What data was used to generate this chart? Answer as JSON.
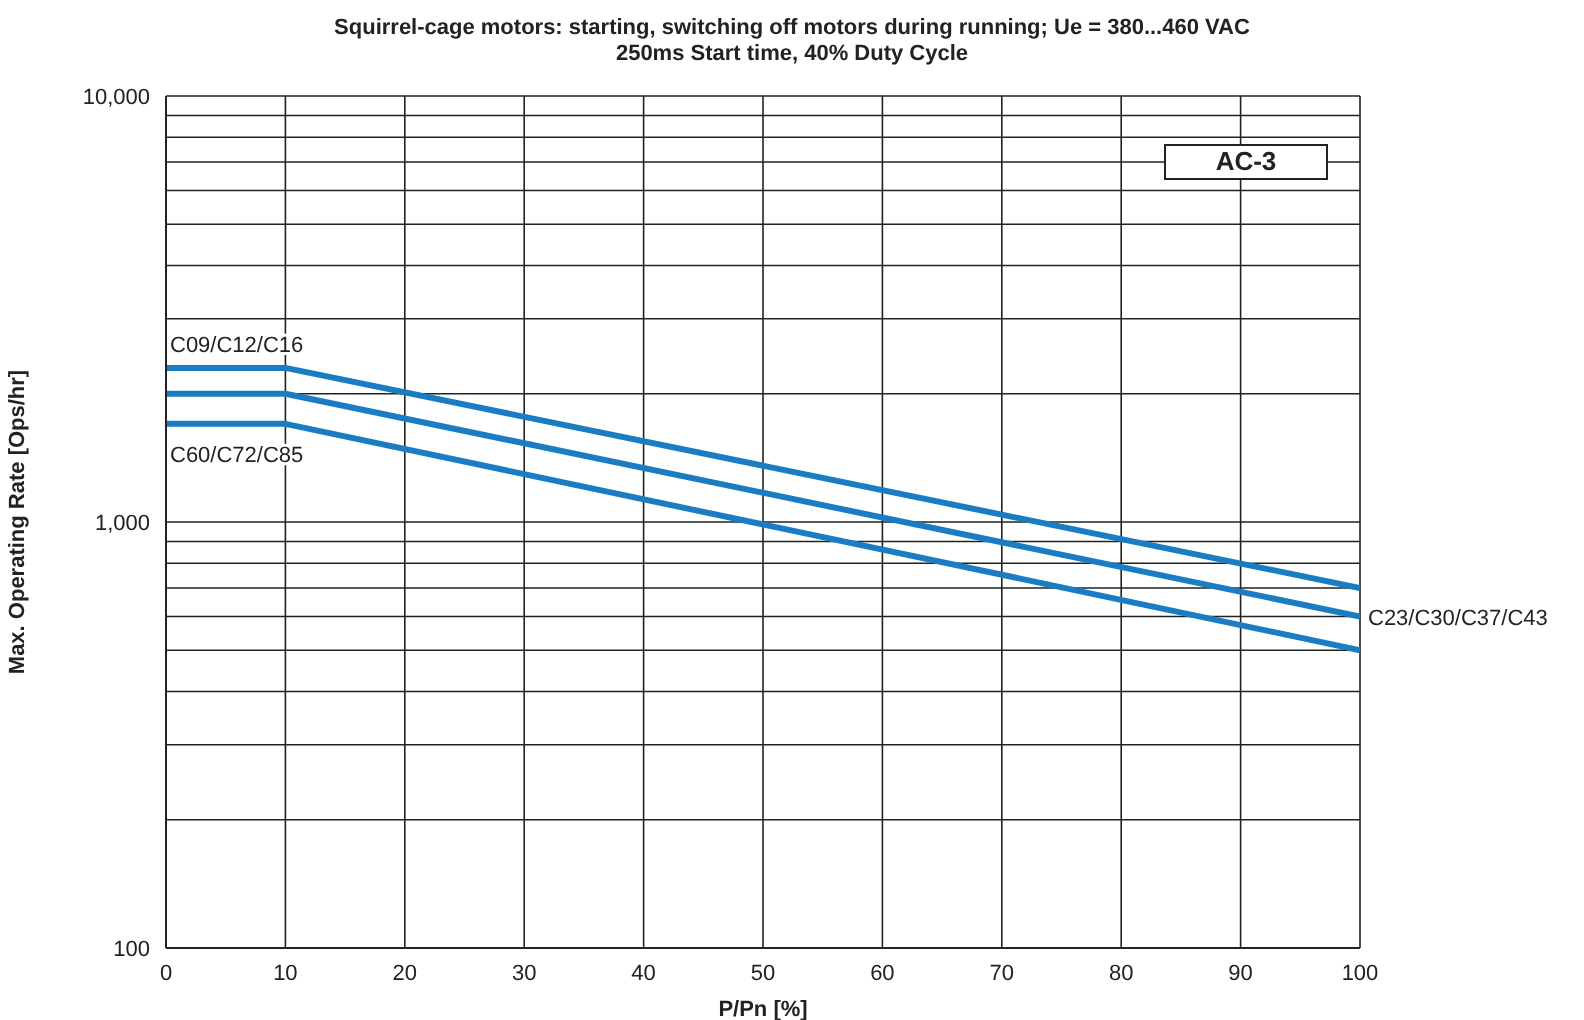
{
  "chart_data": {
    "type": "line",
    "title": "Squirrel-cage motors: starting, switching off motors during running; Ue = 380...460 VAC",
    "subtitle": "250ms Start time, 40% Duty Cycle",
    "xlabel": "P/Pn [%]",
    "ylabel": "Max. Operating Rate [Ops/hr]",
    "x": [
      0,
      10,
      100
    ],
    "series": [
      {
        "name": "C09/C12/C16",
        "color": "#1a7dc4",
        "values": [
          2300,
          2300,
          700
        ]
      },
      {
        "name": "C23/C30/C37/C43",
        "color": "#1a7dc4",
        "values": [
          2000,
          2000,
          600
        ]
      },
      {
        "name": "C60/C72/C85",
        "color": "#1a7dc4",
        "values": [
          1700,
          1700,
          500
        ]
      }
    ],
    "annotations": [
      "AC-3"
    ],
    "log": "y",
    "xlim": [
      0,
      100
    ],
    "xticks": [
      0,
      10,
      20,
      30,
      40,
      50,
      60,
      70,
      80,
      90,
      100
    ],
    "ylim": [
      100,
      10000
    ],
    "yticks": [
      {
        "value": 100,
        "label": "100"
      },
      {
        "value": 200,
        "label": null
      },
      {
        "value": 300,
        "label": null
      },
      {
        "value": 400,
        "label": null
      },
      {
        "value": 500,
        "label": null
      },
      {
        "value": 600,
        "label": null
      },
      {
        "value": 700,
        "label": null
      },
      {
        "value": 800,
        "label": null
      },
      {
        "value": 900,
        "label": null
      },
      {
        "value": 1000,
        "label": "1,000"
      },
      {
        "value": 2000,
        "label": null
      },
      {
        "value": 3000,
        "label": null
      },
      {
        "value": 4000,
        "label": null
      },
      {
        "value": 5000,
        "label": null
      },
      {
        "value": 6000,
        "label": null
      },
      {
        "value": 7000,
        "label": null
      },
      {
        "value": 8000,
        "label": null
      },
      {
        "value": 9000,
        "label": null
      },
      {
        "value": 10000,
        "label": "10,000"
      }
    ],
    "grid": true,
    "legend": false,
    "marker": "none",
    "line_style": "solid"
  }
}
